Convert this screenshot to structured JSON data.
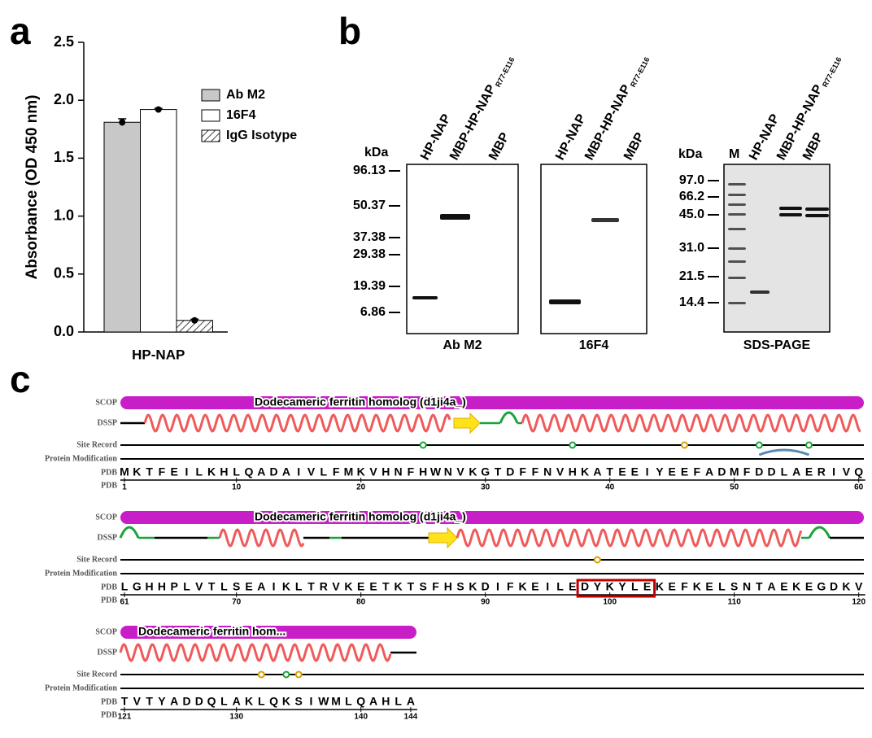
{
  "panel_labels": [
    "a",
    "b",
    "c"
  ],
  "chart_data": {
    "type": "bar",
    "ylabel": "Absorbance (OD 450 nm)",
    "categories": [
      "HP-NAP"
    ],
    "series": [
      {
        "name": "Ab M2",
        "color": "#c8c8c8",
        "values": [
          1.81
        ],
        "errors": [
          0.03
        ]
      },
      {
        "name": "16F4",
        "color": "#ffffff",
        "values": [
          1.92
        ],
        "errors": [
          0.01
        ]
      },
      {
        "name": "IgG Isotype",
        "color": "#ffffff",
        "pattern": "hatch",
        "values": [
          0.1
        ],
        "errors": [
          0.01
        ]
      }
    ],
    "ylim": [
      0,
      2.5
    ],
    "yticks": [
      {
        "value": 0,
        "label": "0.0"
      },
      0.5,
      {
        "value": 1,
        "label": "1.0"
      },
      1.5,
      {
        "value": 2,
        "label": "2.0"
      },
      2.5
    ]
  },
  "blots": {
    "kda": "kDa",
    "lane_subscript": "R77-E116",
    "gels": [
      {
        "lanes": [
          "HP-NAP",
          "MBP-HP-NAP",
          "MBP"
        ],
        "markers": [
          "96.13",
          "50.37",
          "37.38",
          "29.38",
          "19.39",
          "6.86"
        ],
        "caption": "Ab M2"
      },
      {
        "lanes": [
          "HP-NAP",
          "MBP-HP-NAP",
          "MBP"
        ],
        "caption": "16F4"
      },
      {
        "lanes": [
          "M",
          "HP-NAP",
          "MBP-HP-NAP",
          "MBP"
        ],
        "markers": [
          "97.0",
          "66.2",
          "45.0",
          "31.0",
          "21.5",
          "14.4"
        ],
        "caption": "SDS-PAGE"
      }
    ]
  },
  "sequence": {
    "track_labels": [
      "SCOP",
      "DSSP",
      "Site Record",
      "Protein Modification",
      "PDB",
      "PDB"
    ],
    "rows": [
      {
        "scop": "Dodecameric ferritin homolog (d1ji4a_)",
        "residues": "MKTFEILKHLQADAIVLFMKVHNFHWNVKGTDFFNVHKATEEIYEEFADMFDDLAERIVQ",
        "ruler": [
          1,
          10,
          20,
          30,
          40,
          50,
          60
        ]
      },
      {
        "scop": "Dodecameric ferritin homolog (d1ji4a_)",
        "residues": "LGHHPLVTLSEAIKLTRVKEETKTSFHSKDIFKEILEDYKYLEKEFKELSNTAEKEGDKV",
        "ruler": [
          61,
          70,
          80,
          90,
          100,
          110,
          120
        ]
      },
      {
        "scop": "Dodecameric ferritin hom...",
        "residues": "TVTYADDQLAKLQKSIWMLQAHLA",
        "ruler": [
          121,
          130,
          140,
          144
        ]
      }
    ]
  }
}
